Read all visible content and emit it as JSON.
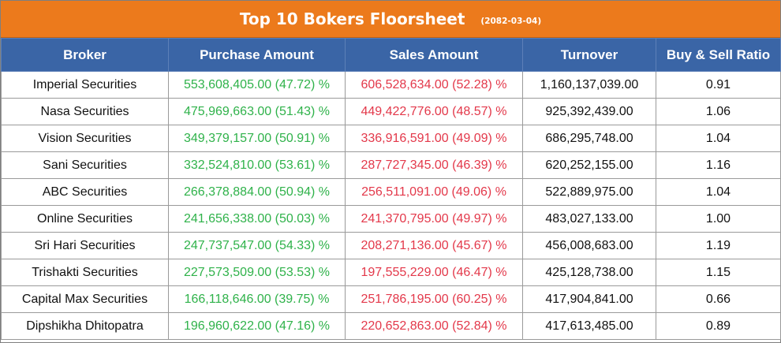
{
  "title": {
    "text": "Top 10 Bokers Floorsheet",
    "date": "(2082-03-04)"
  },
  "colors": {
    "title_bg": "#ec7a1c",
    "header_bg": "#3a65a6",
    "purchase_text": "#2fb24a",
    "sales_text": "#e3384a"
  },
  "table": {
    "headers": [
      "Broker",
      "Purchase Amount",
      "Sales Amount",
      "Turnover",
      "Buy & Sell Ratio"
    ],
    "rows": [
      {
        "broker": "Imperial Securities",
        "purchase": "553,608,405.00 (47.72) %",
        "sales": "606,528,634.00 (52.28) %",
        "turnover": "1,160,137,039.00",
        "ratio": "0.91"
      },
      {
        "broker": "Nasa Securities",
        "purchase": "475,969,663.00 (51.43) %",
        "sales": "449,422,776.00 (48.57) %",
        "turnover": "925,392,439.00",
        "ratio": "1.06"
      },
      {
        "broker": "Vision Securities",
        "purchase": "349,379,157.00 (50.91) %",
        "sales": "336,916,591.00 (49.09) %",
        "turnover": "686,295,748.00",
        "ratio": "1.04"
      },
      {
        "broker": "Sani Securities",
        "purchase": "332,524,810.00 (53.61) %",
        "sales": "287,727,345.00 (46.39) %",
        "turnover": "620,252,155.00",
        "ratio": "1.16"
      },
      {
        "broker": "ABC Securities",
        "purchase": "266,378,884.00 (50.94) %",
        "sales": "256,511,091.00 (49.06) %",
        "turnover": "522,889,975.00",
        "ratio": "1.04"
      },
      {
        "broker": "Online Securities",
        "purchase": "241,656,338.00 (50.03) %",
        "sales": "241,370,795.00 (49.97) %",
        "turnover": "483,027,133.00",
        "ratio": "1.00"
      },
      {
        "broker": "Sri Hari Securities",
        "purchase": "247,737,547.00 (54.33) %",
        "sales": "208,271,136.00 (45.67) %",
        "turnover": "456,008,683.00",
        "ratio": "1.19"
      },
      {
        "broker": "Trishakti Securities",
        "purchase": "227,573,509.00 (53.53) %",
        "sales": "197,555,229.00 (46.47) %",
        "turnover": "425,128,738.00",
        "ratio": "1.15"
      },
      {
        "broker": "Capital Max Securities",
        "purchase": "166,118,646.00 (39.75) %",
        "sales": "251,786,195.00 (60.25) %",
        "turnover": "417,904,841.00",
        "ratio": "0.66"
      },
      {
        "broker": "Dipshikha Dhitopatra",
        "purchase": "196,960,622.00 (47.16) %",
        "sales": "220,652,863.00 (52.84) %",
        "turnover": "417,613,485.00",
        "ratio": "0.89"
      }
    ]
  }
}
